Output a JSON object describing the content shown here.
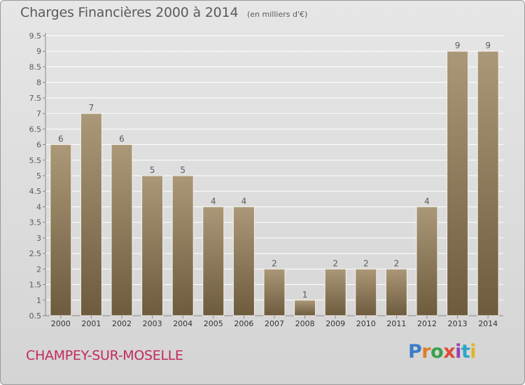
{
  "header": {
    "title": "Charges Financières 2000 à 2014",
    "subtitle": "(en milliers d'€)"
  },
  "commune": "CHAMPEY-SUR-MOSELLE",
  "logo": {
    "text": "Proxiti",
    "colors": [
      "#3a7cc9",
      "#e07b2a",
      "#3aa14a",
      "#e04a3a",
      "#9a3fb0",
      "#2aa6c9",
      "#e0b42a"
    ]
  },
  "colors": {
    "bar_top": "#ab9878",
    "bar_bottom": "#6e5b3e",
    "text": "#5a5a5a",
    "grid": "#ffffff"
  },
  "chart_data": {
    "type": "bar",
    "categories": [
      "2000",
      "2001",
      "2002",
      "2003",
      "2004",
      "2005",
      "2006",
      "2007",
      "2008",
      "2009",
      "2010",
      "2011",
      "2012",
      "2013",
      "2014"
    ],
    "values": [
      6,
      7,
      6,
      5,
      5,
      4,
      4,
      2,
      1,
      2,
      2,
      2,
      4,
      9,
      9
    ],
    "data_labels": [
      "6",
      "7",
      "6",
      "5",
      "5",
      "4",
      "4",
      "2",
      "1",
      "2",
      "2",
      "2",
      "4",
      "9",
      "9"
    ],
    "yticks": [
      "0.5",
      "1",
      "1.5",
      "2",
      "2.5",
      "3",
      "3.5",
      "4",
      "4.5",
      "5",
      "5.5",
      "6",
      "6.5",
      "7",
      "7.5",
      "8",
      "8.5",
      "9",
      "9.5"
    ],
    "ylim": [
      0.5,
      9.5
    ],
    "grid": true,
    "title": "Charges Financières 2000 à 2014",
    "xlabel": "",
    "ylabel": ""
  }
}
